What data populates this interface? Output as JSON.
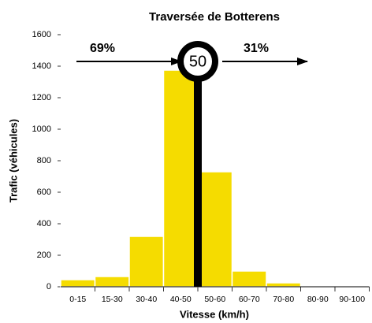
{
  "chart_data": {
    "type": "bar",
    "title": "Traversée de Botterens",
    "x_label": "Vitesse (km/h)",
    "y_label": "Trafic (véhicules)",
    "categories": [
      "0-15",
      "15-30",
      "30-40",
      "40-50",
      "50-60",
      "60-70",
      "70-80",
      "80-90",
      "90-100"
    ],
    "values": [
      45,
      65,
      320,
      1375,
      730,
      100,
      25,
      0,
      0
    ],
    "color": "#f5dc00",
    "ylim": [
      0,
      1600
    ],
    "yticks": [
      0,
      200,
      400,
      600,
      800,
      1000,
      1200,
      1400,
      1600
    ],
    "speed_limit": "50",
    "annotations": {
      "below_limit": "69%",
      "above_limit": "31%"
    }
  }
}
